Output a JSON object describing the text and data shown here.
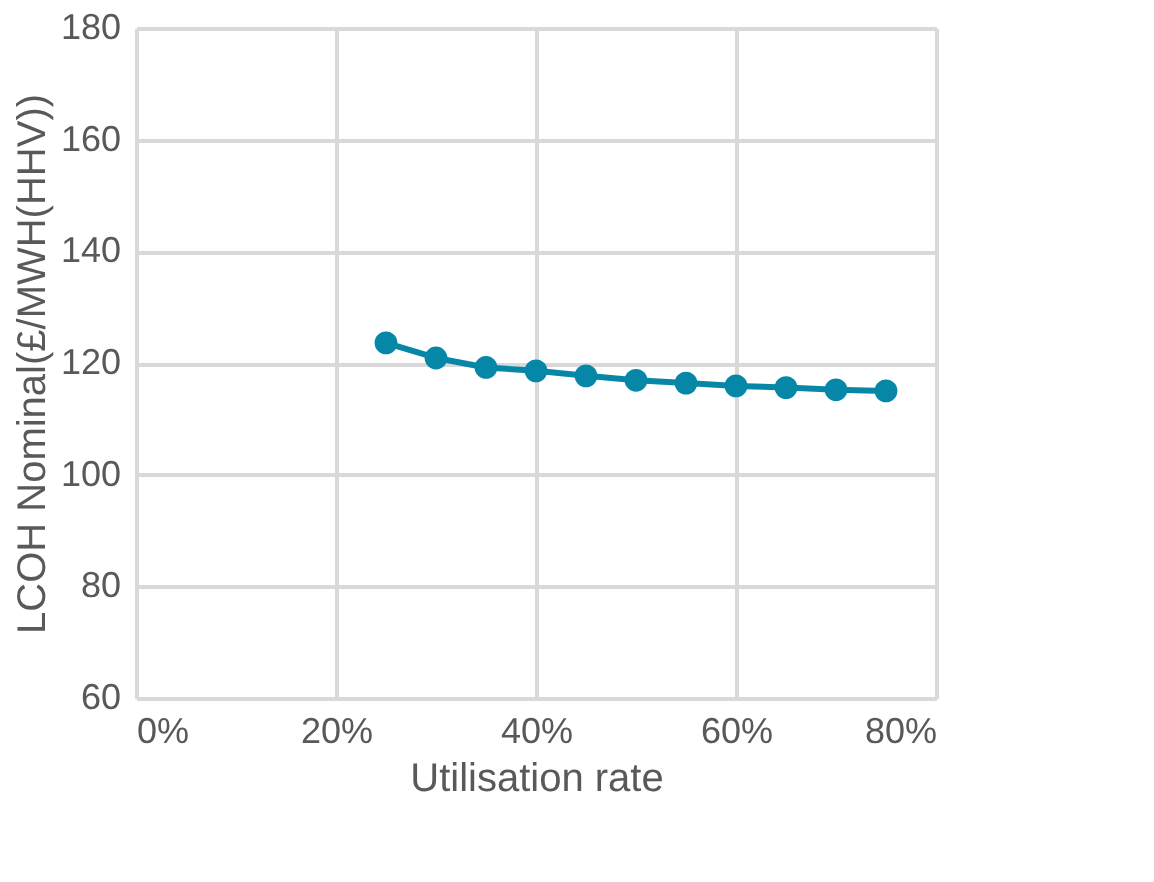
{
  "chart_data": {
    "type": "line",
    "xlabel": "Utilisation rate",
    "ylabel": "LCOH Nominal(£/MWH(HHV))",
    "x": [
      25,
      30,
      35,
      40,
      45,
      50,
      55,
      60,
      65,
      70,
      75
    ],
    "series": [
      {
        "color": "#0787a8",
        "values": [
          123.6,
          120.9,
          119.2,
          118.6,
          117.7,
          116.9,
          116.4,
          115.9,
          115.6,
          115.2,
          115.0
        ]
      }
    ],
    "xlim": [
      0,
      80
    ],
    "xticks": [
      {
        "value": 0,
        "label": "0%"
      },
      {
        "value": 20,
        "label": "20%"
      },
      {
        "value": 40,
        "label": "40%"
      },
      {
        "value": 60,
        "label": "60%"
      },
      {
        "value": 80,
        "label": "80%"
      }
    ],
    "ylim": [
      60,
      180
    ],
    "yticks": [
      60,
      80,
      100,
      120,
      140,
      160,
      180
    ],
    "grid": true,
    "marker": "circle",
    "line_style": "solid"
  }
}
